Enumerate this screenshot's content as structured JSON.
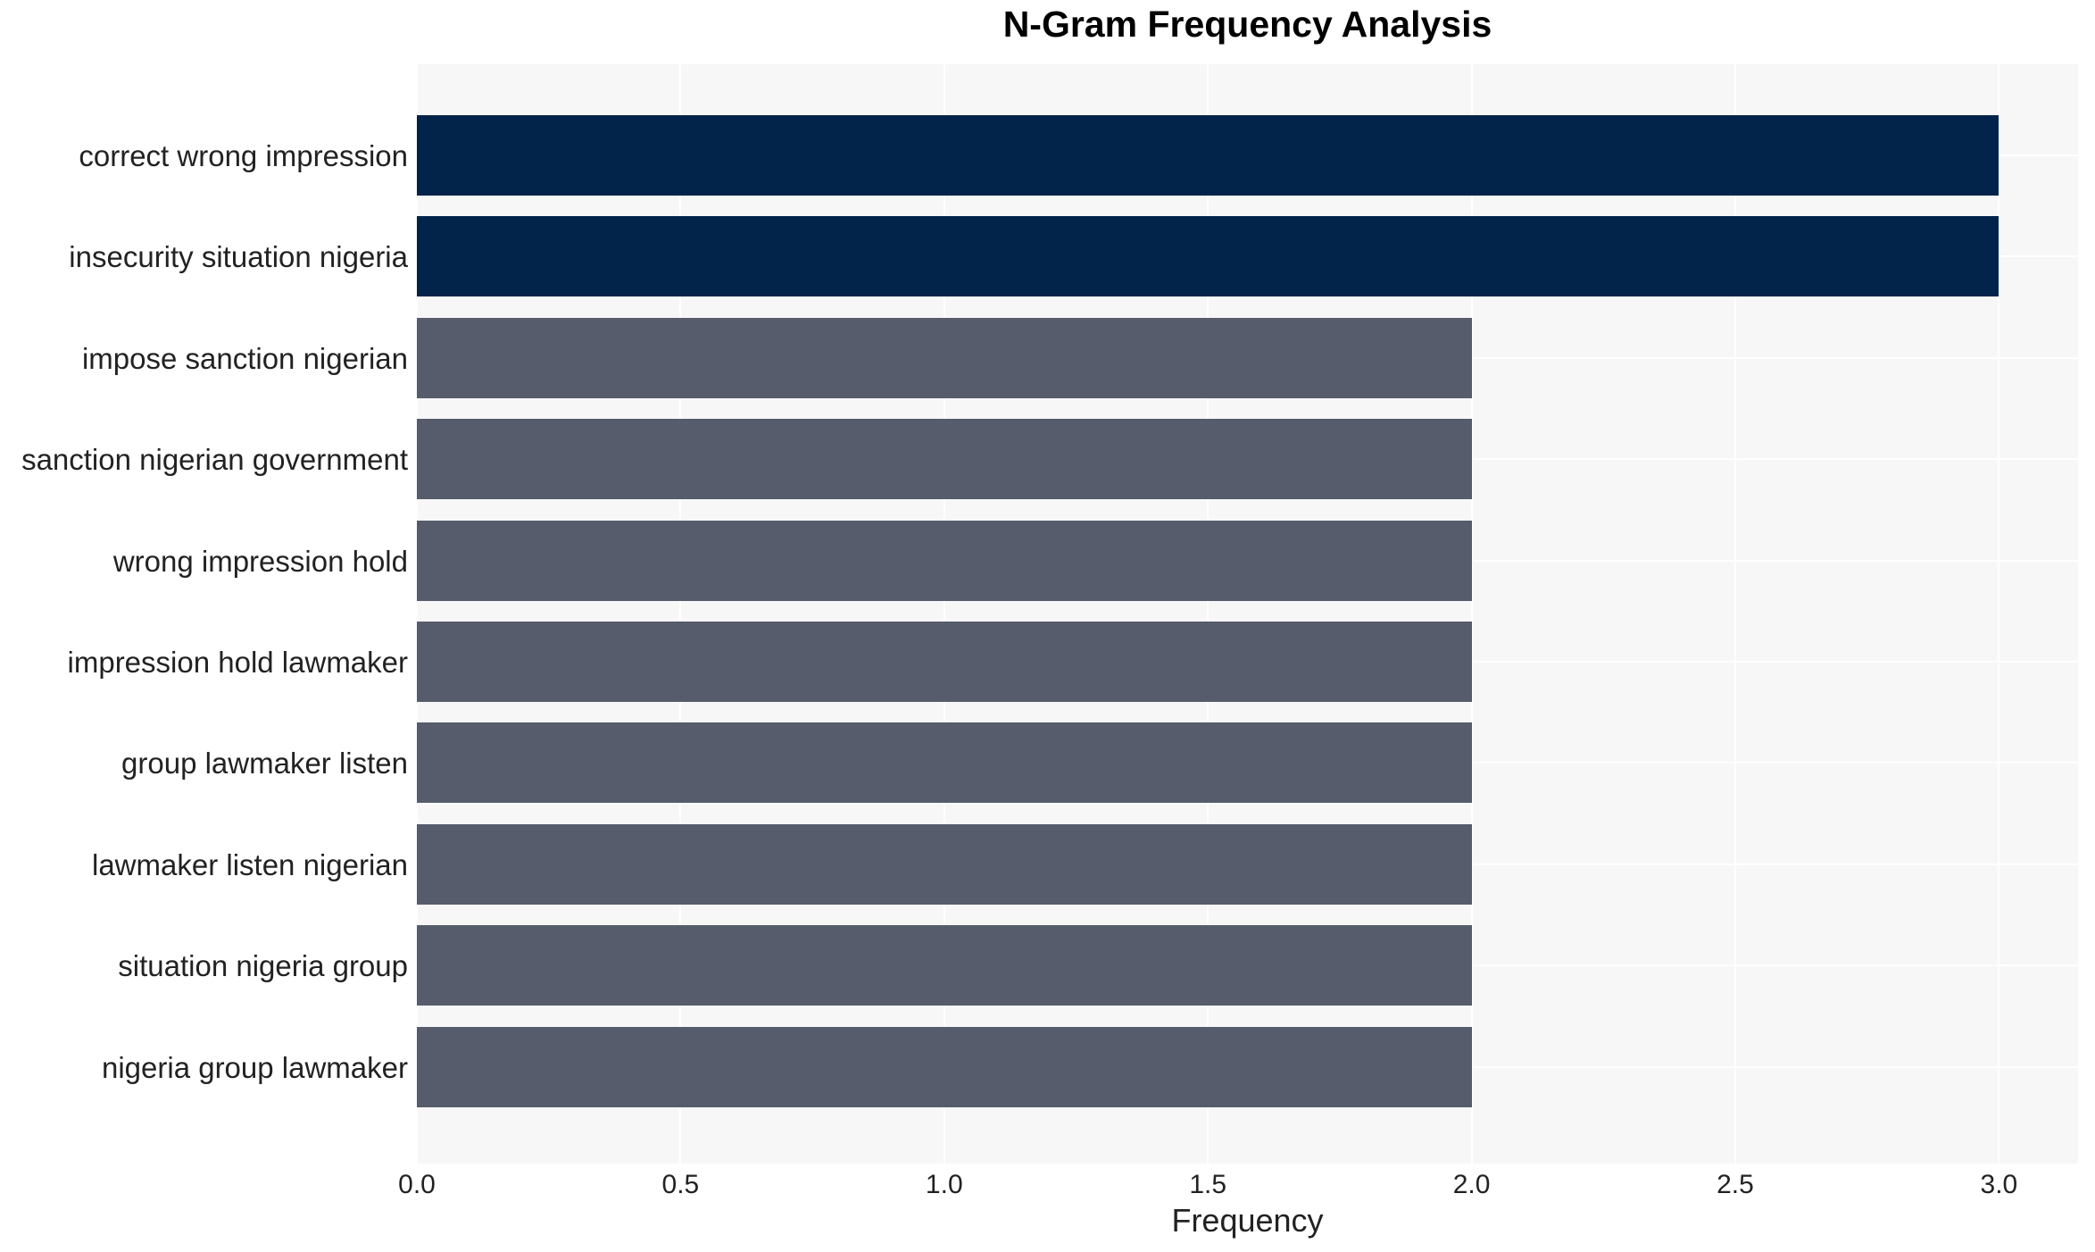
{
  "chart_data": {
    "type": "bar",
    "orientation": "horizontal",
    "title": "N-Gram Frequency Analysis",
    "xlabel": "Frequency",
    "ylabel": "",
    "categories": [
      "correct wrong impression",
      "insecurity situation nigeria",
      "impose sanction nigerian",
      "sanction nigerian government",
      "wrong impression hold",
      "impression hold lawmaker",
      "group lawmaker listen",
      "lawmaker listen nigerian",
      "situation nigeria group",
      "nigeria group lawmaker"
    ],
    "values": [
      3,
      3,
      2,
      2,
      2,
      2,
      2,
      2,
      2,
      2
    ],
    "bar_colors": [
      "#02234a",
      "#02234a",
      "#565c6b",
      "#565c6b",
      "#565c6b",
      "#565c6b",
      "#565c6b",
      "#565c6b",
      "#565c6b",
      "#565c6b"
    ],
    "x_tick_labels": [
      "0.0",
      "0.5",
      "1.0",
      "1.5",
      "2.0",
      "2.5",
      "3.0"
    ],
    "x_tick_values": [
      0.0,
      0.5,
      1.0,
      1.5,
      2.0,
      2.5,
      3.0
    ],
    "xlim": [
      0,
      3.15
    ],
    "grid": true,
    "legend_position": "none",
    "colors": {
      "highlight": "#02234a",
      "normal": "#565c6b",
      "plot_background": "#f7f7f8",
      "grid": "#ffffff",
      "text": "#222222",
      "title_text": "#000000"
    }
  }
}
